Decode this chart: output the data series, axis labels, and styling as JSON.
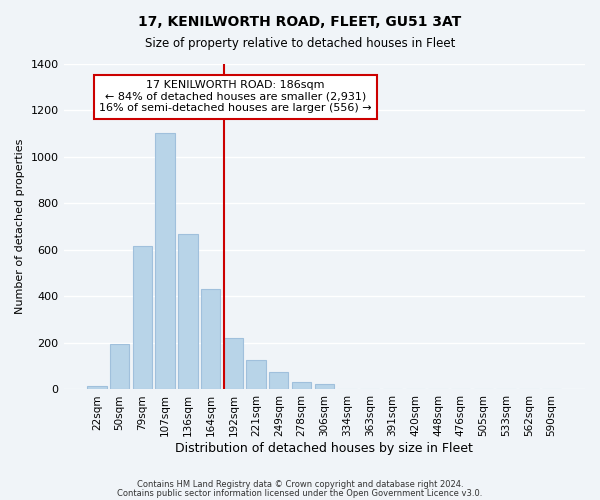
{
  "title": "17, KENILWORTH ROAD, FLEET, GU51 3AT",
  "subtitle": "Size of property relative to detached houses in Fleet",
  "xlabel": "Distribution of detached houses by size in Fleet",
  "ylabel": "Number of detached properties",
  "bar_labels": [
    "22sqm",
    "50sqm",
    "79sqm",
    "107sqm",
    "136sqm",
    "164sqm",
    "192sqm",
    "221sqm",
    "249sqm",
    "278sqm",
    "306sqm",
    "334sqm",
    "363sqm",
    "391sqm",
    "420sqm",
    "448sqm",
    "476sqm",
    "505sqm",
    "533sqm",
    "562sqm",
    "590sqm"
  ],
  "bar_values": [
    15,
    195,
    615,
    1105,
    670,
    430,
    220,
    125,
    75,
    30,
    25,
    0,
    0,
    0,
    0,
    0,
    0,
    0,
    0,
    0,
    0
  ],
  "bar_color": "#b8d4e8",
  "bar_edge_color": "#a0c0dc",
  "vline_x": 5.575,
  "vline_color": "#cc0000",
  "ylim": [
    0,
    1400
  ],
  "yticks": [
    0,
    200,
    400,
    600,
    800,
    1000,
    1200,
    1400
  ],
  "annotation_title": "17 KENILWORTH ROAD: 186sqm",
  "annotation_line1": "← 84% of detached houses are smaller (2,931)",
  "annotation_line2": "16% of semi-detached houses are larger (556) →",
  "annotation_box_color": "#ffffff",
  "annotation_box_edge": "#cc0000",
  "footer1": "Contains HM Land Registry data © Crown copyright and database right 2024.",
  "footer2": "Contains public sector information licensed under the Open Government Licence v3.0.",
  "background_color": "#f0f4f8",
  "grid_color": "#ffffff"
}
